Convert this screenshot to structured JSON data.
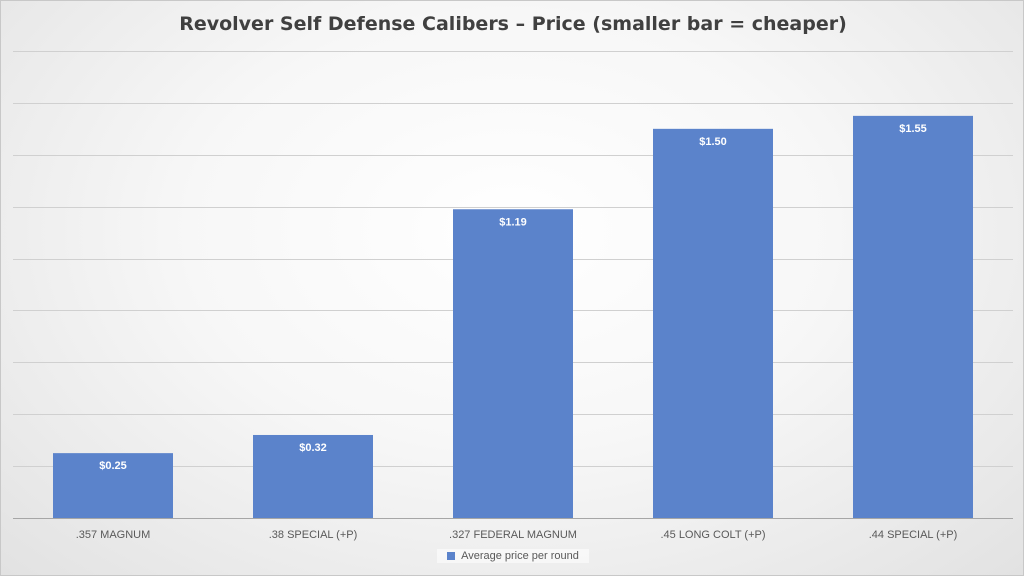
{
  "chart_data": {
    "type": "bar",
    "title": "Revolver Self Defense Calibers – Price (smaller bar = cheaper)",
    "categories": [
      ".357 MAGNUM",
      ".38 SPECIAL (+P)",
      ".327 FEDERAL MAGNUM",
      ".45 LONG COLT (+P)",
      ".44 SPECIAL (+P)"
    ],
    "series": [
      {
        "name": "Average price per round",
        "values": [
          0.25,
          0.32,
          1.19,
          1.5,
          1.55
        ],
        "labels": [
          "$0.25",
          "$0.32",
          "$1.19",
          "$1.50",
          "$1.55"
        ],
        "color": "#5b83cb"
      }
    ],
    "ylim": [
      0,
      1.8
    ],
    "grid": true,
    "y_tick_labels_shown": false,
    "legend_position": "bottom",
    "xlabel": "",
    "ylabel": ""
  }
}
